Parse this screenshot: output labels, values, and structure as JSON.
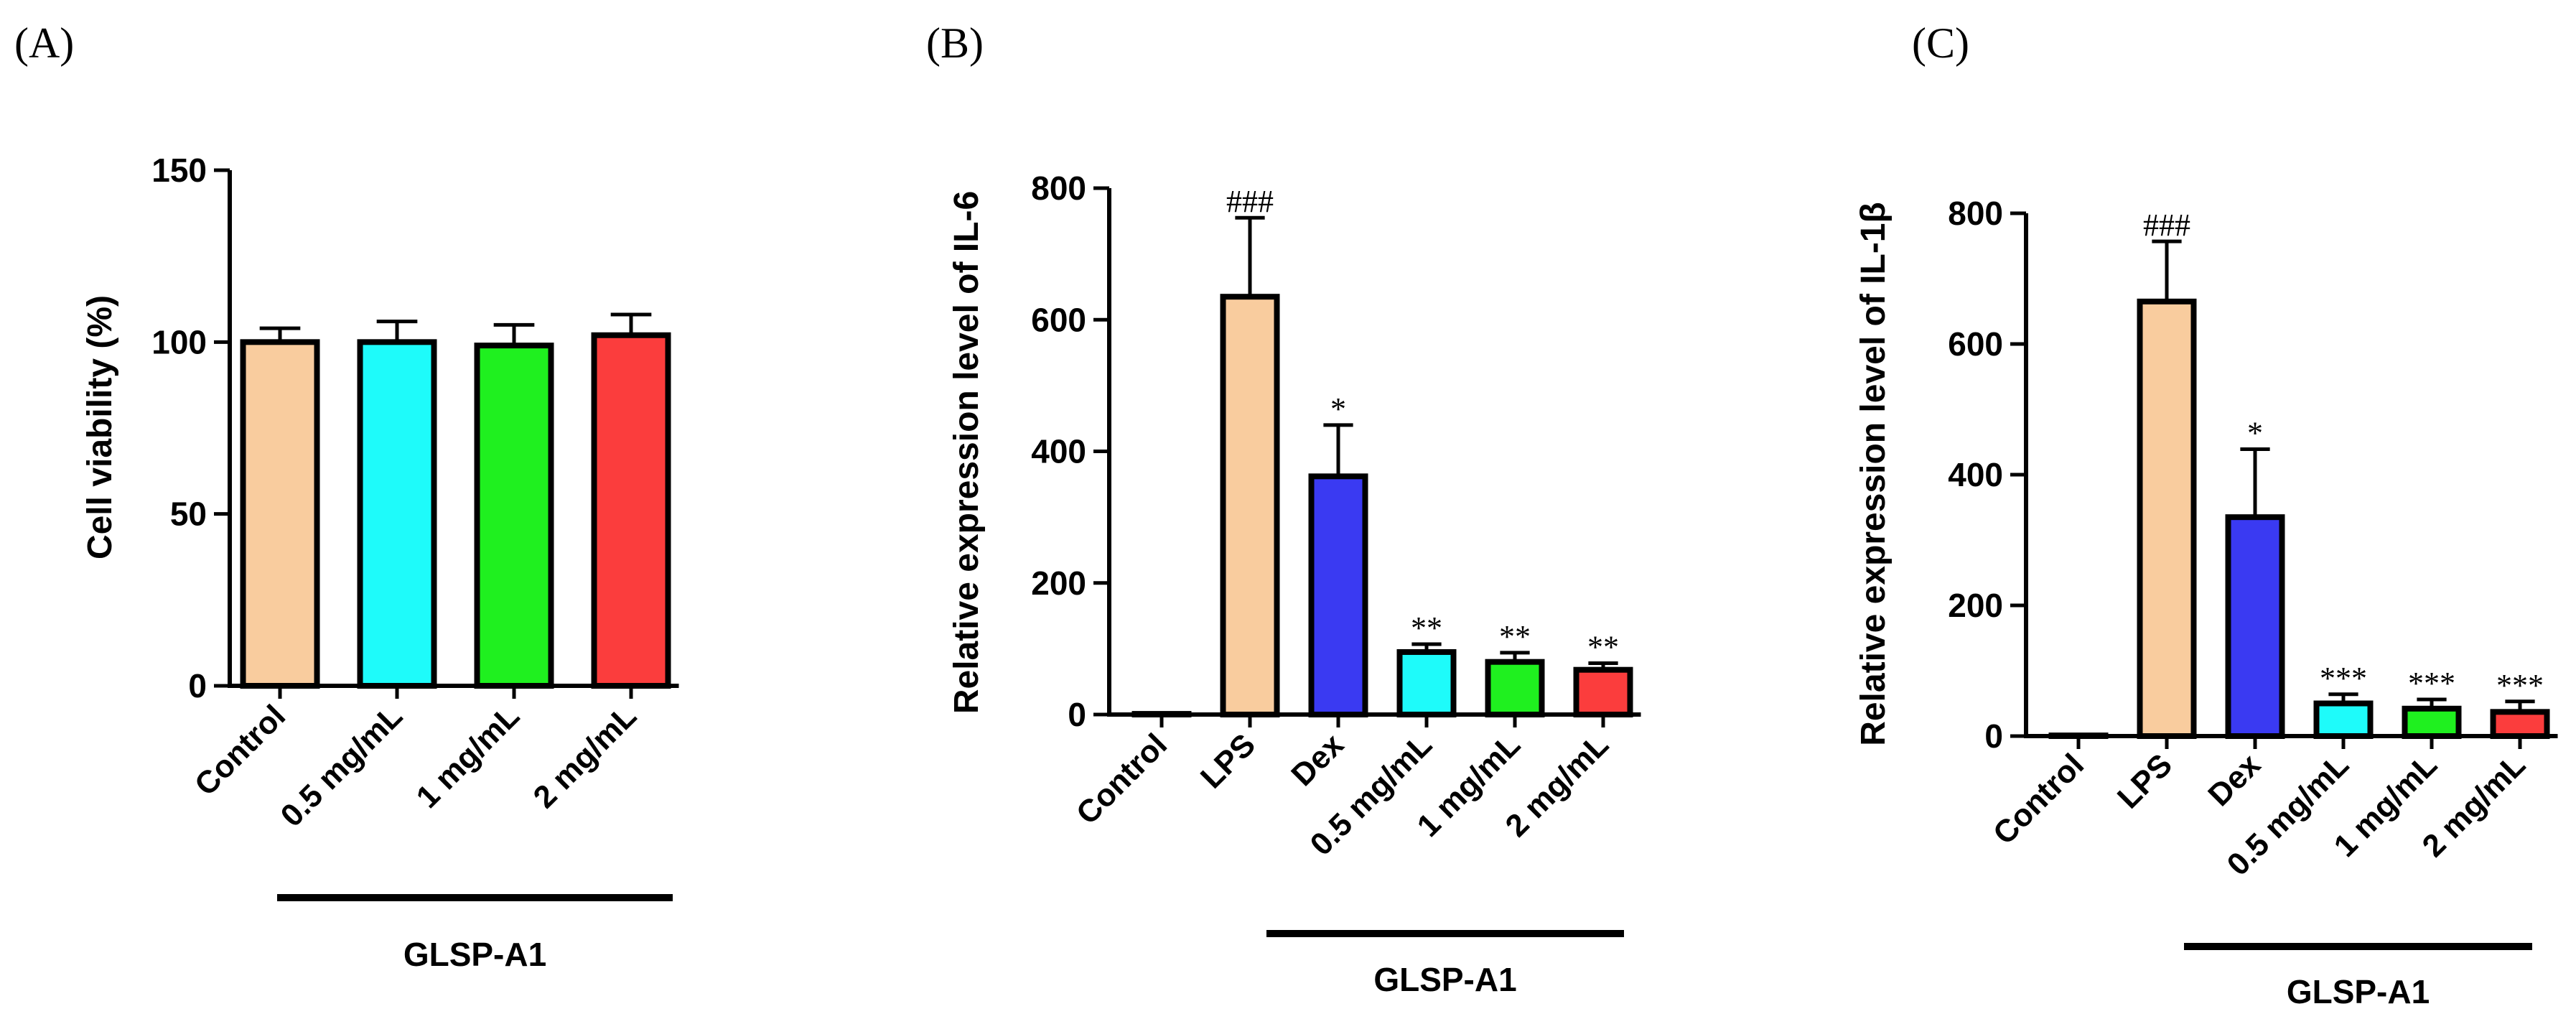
{
  "chart_data": [
    {
      "type": "bar",
      "panel_label": "(A)",
      "ylabel": "Cell viability (%)",
      "ylim": [
        0,
        150
      ],
      "yticks": [
        "0",
        "50",
        "100",
        "150"
      ],
      "categories": [
        "Control",
        "0.5 mg/mL",
        "1  mg/mL",
        "2  mg/mL"
      ],
      "values": [
        100,
        100,
        99,
        102
      ],
      "errors": [
        4,
        6,
        6,
        6
      ],
      "colors": [
        "#F9CC9E",
        "#1EFBFA",
        "#1FF01F",
        "#FB3D3D"
      ],
      "annotations": [
        "",
        "",
        "",
        ""
      ],
      "group": {
        "label": "GLSP-A1",
        "from": 0,
        "to": 3
      }
    },
    {
      "type": "bar",
      "panel_label": "(B)",
      "ylabel": "Relative expression level of IL-6",
      "ylim": [
        0,
        800
      ],
      "yticks": [
        "0",
        "200",
        "400",
        "600",
        "800"
      ],
      "categories": [
        "Control",
        "LPS",
        "Dex",
        "0.5 mg/mL",
        "1  mg/mL",
        "2  mg/mL"
      ],
      "values": [
        1,
        635,
        362,
        95,
        80,
        68
      ],
      "errors": [
        0,
        120,
        78,
        12,
        14,
        10
      ],
      "colors": [
        "#FFFFFF",
        "#F9CC9E",
        "#3A3AF2",
        "#1EFBFA",
        "#1FF01F",
        "#FB3D3D"
      ],
      "annotations": [
        "",
        "###",
        "*",
        "**",
        "**",
        "**"
      ],
      "group": {
        "label": "GLSP-A1",
        "from": 1,
        "to": 5
      }
    },
    {
      "type": "bar",
      "panel_label": "(C)",
      "ylabel": "Relative expression level of IL-1β",
      "ylim": [
        0,
        800
      ],
      "yticks": [
        "0",
        "200",
        "400",
        "600",
        "800"
      ],
      "categories": [
        "Control",
        "LPS",
        "Dex",
        "0.5 mg/mL",
        "1  mg/mL",
        "2  mg/mL"
      ],
      "values": [
        1,
        665,
        335,
        50,
        42,
        37
      ],
      "errors": [
        0,
        92,
        104,
        14,
        14,
        16
      ],
      "colors": [
        "#FFFFFF",
        "#F9CC9E",
        "#3A3AF2",
        "#1EFBFA",
        "#1FF01F",
        "#FB3D3D"
      ],
      "annotations": [
        "",
        "###",
        "*",
        "***",
        "***",
        "***"
      ],
      "group": {
        "label": "GLSP-A1",
        "from": 1,
        "to": 5
      }
    }
  ]
}
